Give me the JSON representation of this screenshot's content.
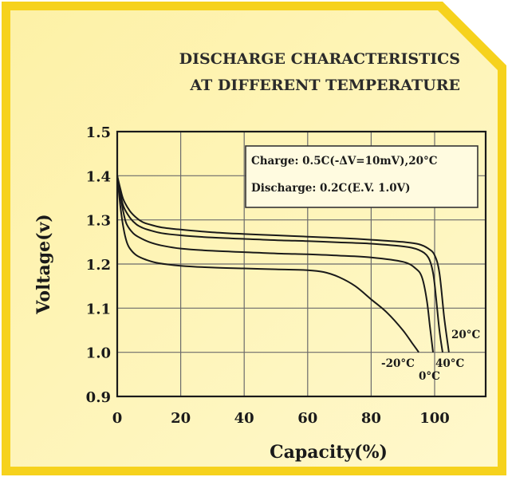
{
  "chart_data": {
    "type": "line",
    "title": [
      "DISCHARGE CHARACTERISTICS",
      "AT DIFFERENT TEMPERATURE"
    ],
    "xlabel": "Capacity(%)",
    "ylabel": "Voltage(v)",
    "xlim": [
      0,
      117
    ],
    "ylim": [
      0.9,
      1.5
    ],
    "xticks": [
      "0",
      "20",
      "40",
      "60",
      "80",
      "100"
    ],
    "yticks": [
      "0.9",
      "1.0",
      "1.1",
      "1.2",
      "1.3",
      "1.4",
      "1.5"
    ],
    "grid": true,
    "legend_lines": [
      "Charge: 0.5C(-ΔV=10mV),20°C",
      "Discharge: 0.2C(E.V. 1.0V)"
    ],
    "legend_position": "top-right",
    "series": [
      {
        "name": "20°C",
        "x": [
          0,
          1,
          2,
          4,
          6,
          8,
          10,
          14,
          20,
          30,
          40,
          50,
          60,
          70,
          80,
          90,
          95,
          98,
          100,
          101.5,
          103,
          104.5
        ],
        "y": [
          1.4,
          1.37,
          1.345,
          1.32,
          1.305,
          1.295,
          1.29,
          1.283,
          1.278,
          1.272,
          1.268,
          1.265,
          1.262,
          1.259,
          1.255,
          1.25,
          1.245,
          1.235,
          1.22,
          1.18,
          1.08,
          1.0
        ]
      },
      {
        "name": "40°C",
        "x": [
          0,
          1,
          2,
          4,
          6,
          8,
          10,
          14,
          20,
          30,
          40,
          50,
          60,
          70,
          80,
          90,
          95,
          98,
          99.5,
          100.5,
          101.5,
          102.5
        ],
        "y": [
          1.4,
          1.36,
          1.33,
          1.305,
          1.29,
          1.282,
          1.277,
          1.27,
          1.265,
          1.26,
          1.257,
          1.254,
          1.252,
          1.249,
          1.246,
          1.24,
          1.232,
          1.215,
          1.18,
          1.12,
          1.05,
          1.0
        ]
      },
      {
        "name": "0°C",
        "x": [
          0,
          1,
          2,
          3,
          5,
          7,
          10,
          14,
          20,
          30,
          40,
          50,
          60,
          70,
          80,
          90,
          94,
          96,
          97.5,
          98.5,
          99.5
        ],
        "y": [
          1.4,
          1.355,
          1.315,
          1.29,
          1.27,
          1.26,
          1.25,
          1.242,
          1.235,
          1.23,
          1.227,
          1.224,
          1.222,
          1.219,
          1.215,
          1.205,
          1.19,
          1.17,
          1.12,
          1.06,
          1.0
        ]
      },
      {
        "name": "-20°C",
        "x": [
          0,
          1,
          2,
          3,
          4,
          6,
          9,
          13,
          20,
          30,
          40,
          50,
          60,
          65,
          70,
          75,
          80,
          85,
          90,
          93,
          95
        ],
        "y": [
          1.4,
          1.33,
          1.28,
          1.25,
          1.235,
          1.22,
          1.21,
          1.202,
          1.196,
          1.192,
          1.19,
          1.188,
          1.186,
          1.182,
          1.17,
          1.15,
          1.12,
          1.09,
          1.05,
          1.02,
          1.0
        ]
      }
    ]
  }
}
